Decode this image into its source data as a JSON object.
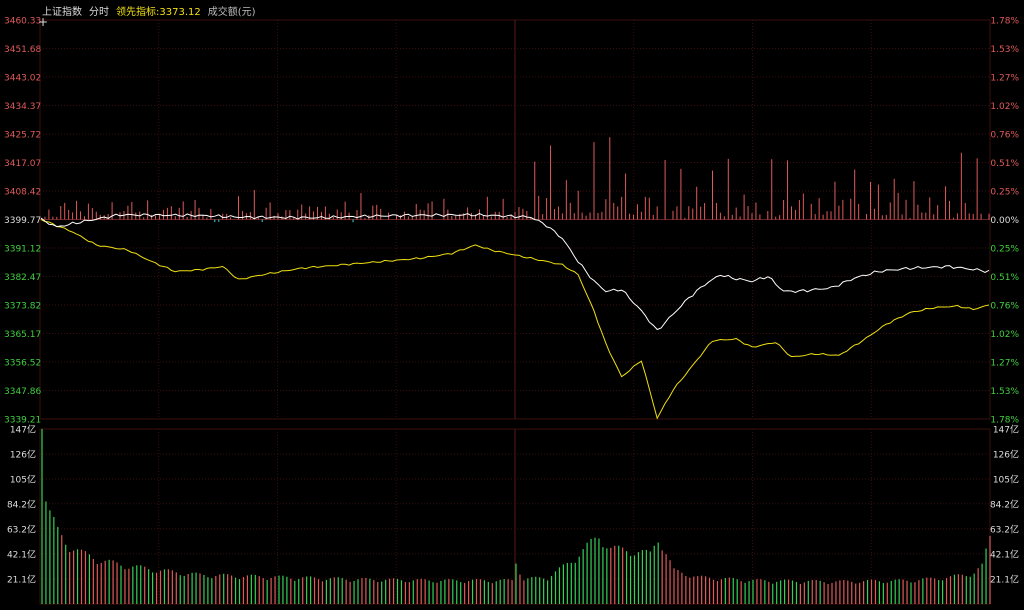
{
  "header": {
    "index_name": "上证指数",
    "period": "分时",
    "leading_label": "领先指标:",
    "leading_value": "3373.12",
    "volume_label": "成交额(元)"
  },
  "colors": {
    "up": "#e05a5a",
    "down": "#3fd8e0",
    "price_line": "#ffffff",
    "leading_line": "#f0e010",
    "vol_up": "#e05a5a",
    "vol_down": "#35d055",
    "grid": "#3a0e0e",
    "axis_pos": "#e05a5a",
    "axis_neg": "#40d040",
    "axis_base": "#dddddd"
  },
  "chart_data": [
    {
      "type": "line",
      "title": "上证指数 分时",
      "base_price": 3399.77,
      "y_ticks_left": [
        "3460.33",
        "3451.68",
        "3443.02",
        "3434.37",
        "3425.72",
        "3417.07",
        "3408.42",
        "3399.77",
        "3391.12",
        "3382.47",
        "3373.82",
        "3365.17",
        "3356.52",
        "3347.86",
        "3339.21"
      ],
      "y_ticks_right": [
        "1.78%",
        "1.53%",
        "1.27%",
        "1.02%",
        "0.76%",
        "0.51%",
        "0.25%",
        "0.00%",
        "0.25%",
        "0.51%",
        "0.76%",
        "1.02%",
        "1.27%",
        "1.53%",
        "1.78%"
      ],
      "ylim": [
        3339.21,
        3460.33
      ],
      "x_points": 241,
      "series": [
        {
          "name": "price",
          "keypoints": [
            [
              0,
              3399.8
            ],
            [
              4,
              3397.5
            ],
            [
              10,
              3399.0
            ],
            [
              20,
              3401.2
            ],
            [
              40,
              3401.0
            ],
            [
              50,
              3400.5
            ],
            [
              70,
              3400.3
            ],
            [
              90,
              3401.0
            ],
            [
              110,
              3401.2
            ],
            [
              124,
              3400.5
            ],
            [
              128,
              3398.0
            ],
            [
              132,
              3394.0
            ],
            [
              136,
              3387.0
            ],
            [
              140,
              3381.0
            ],
            [
              143,
              3378.0
            ],
            [
              147,
              3378.5
            ],
            [
              152,
              3372.0
            ],
            [
              156,
              3366.0
            ],
            [
              160,
              3371.0
            ],
            [
              164,
              3376.0
            ],
            [
              168,
              3380.0
            ],
            [
              172,
              3383.0
            ],
            [
              175,
              3382.0
            ],
            [
              180,
              3381.0
            ],
            [
              184,
              3382.5
            ],
            [
              188,
              3378.0
            ],
            [
              192,
              3378.0
            ],
            [
              200,
              3379.0
            ],
            [
              206,
              3382.0
            ],
            [
              212,
              3384.0
            ],
            [
              220,
              3385.0
            ],
            [
              230,
              3385.5
            ],
            [
              240,
              3384.0
            ]
          ]
        },
        {
          "name": "leading",
          "keypoints": [
            [
              0,
              3399.8
            ],
            [
              8,
              3396.0
            ],
            [
              14,
              3392.0
            ],
            [
              22,
              3390.5
            ],
            [
              28,
              3387.0
            ],
            [
              34,
              3384.0
            ],
            [
              40,
              3384.5
            ],
            [
              46,
              3385.5
            ],
            [
              50,
              3381.5
            ],
            [
              56,
              3383.0
            ],
            [
              66,
              3385.0
            ],
            [
              76,
              3386.0
            ],
            [
              86,
              3387.0
            ],
            [
              96,
              3388.0
            ],
            [
              104,
              3389.5
            ],
            [
              110,
              3392.0
            ],
            [
              114,
              3390.5
            ],
            [
              120,
              3389.0
            ],
            [
              126,
              3387.5
            ],
            [
              132,
              3386.0
            ],
            [
              136,
              3383.0
            ],
            [
              140,
              3372.0
            ],
            [
              143,
              3362.0
            ],
            [
              147,
              3352.0
            ],
            [
              152,
              3357.0
            ],
            [
              156,
              3339.5
            ],
            [
              160,
              3348.0
            ],
            [
              166,
              3357.0
            ],
            [
              170,
              3363.0
            ],
            [
              176,
              3363.5
            ],
            [
              180,
              3361.0
            ],
            [
              186,
              3362.5
            ],
            [
              190,
              3358.0
            ],
            [
              196,
              3359.0
            ],
            [
              202,
              3358.5
            ],
            [
              208,
              3363.0
            ],
            [
              214,
              3368.0
            ],
            [
              220,
              3371.5
            ],
            [
              226,
              3373.0
            ],
            [
              232,
              3373.5
            ],
            [
              236,
              3372.5
            ],
            [
              240,
              3373.8
            ]
          ]
        }
      ]
    },
    {
      "type": "bar",
      "title": "成交额(元)",
      "y_ticks": [
        "147亿",
        "126亿",
        "105亿",
        "84.2亿",
        "63.2亿",
        "42.1亿",
        "21.1亿"
      ],
      "ylim": [
        0,
        147
      ],
      "unit": "亿",
      "keypoints": [
        [
          0,
          147
        ],
        [
          1,
          96
        ],
        [
          2,
          82
        ],
        [
          4,
          65
        ],
        [
          6,
          55
        ],
        [
          10,
          46
        ],
        [
          14,
          40
        ],
        [
          20,
          35
        ],
        [
          30,
          30
        ],
        [
          40,
          26
        ],
        [
          60,
          24
        ],
        [
          80,
          22
        ],
        [
          100,
          21
        ],
        [
          119,
          21
        ],
        [
          120,
          38
        ],
        [
          122,
          22
        ],
        [
          128,
          24
        ],
        [
          134,
          38
        ],
        [
          138,
          52
        ],
        [
          141,
          60
        ],
        [
          144,
          50
        ],
        [
          148,
          48
        ],
        [
          154,
          45
        ],
        [
          156,
          60
        ],
        [
          160,
          30
        ],
        [
          166,
          24
        ],
        [
          180,
          21
        ],
        [
          200,
          20
        ],
        [
          220,
          21
        ],
        [
          230,
          24
        ],
        [
          236,
          28
        ],
        [
          238,
          34
        ],
        [
          240,
          60
        ]
      ]
    }
  ]
}
